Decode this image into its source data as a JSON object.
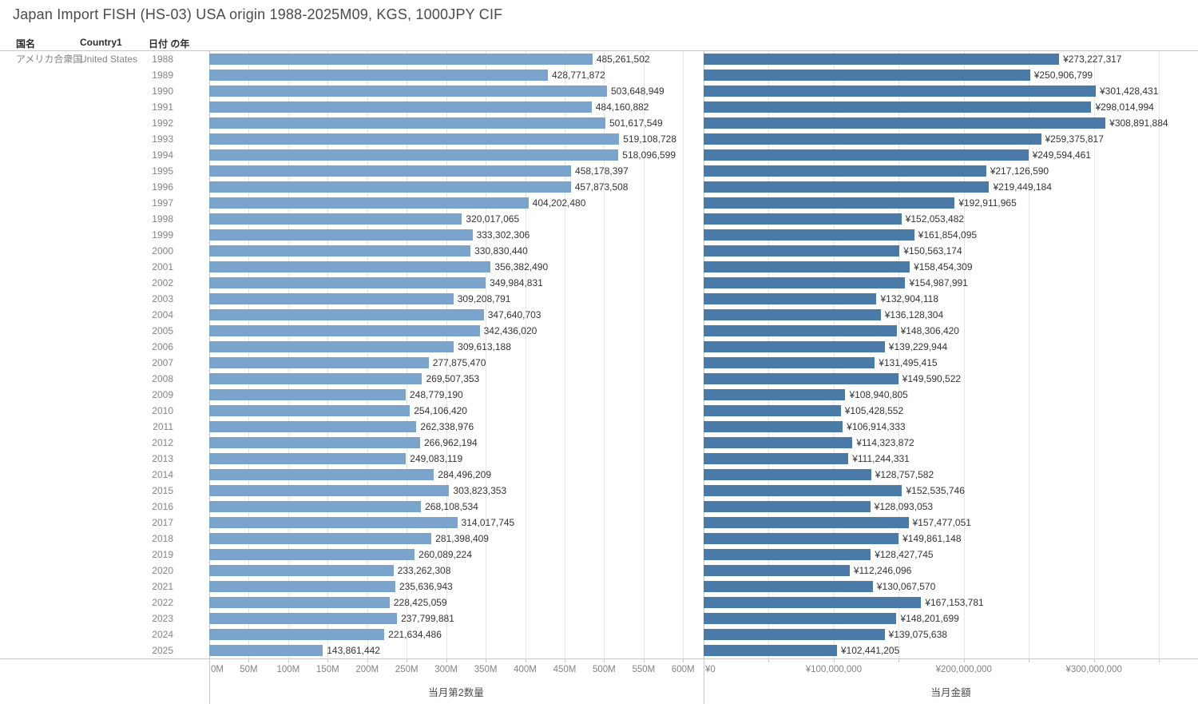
{
  "title": "Japan Import FISH (HS-03) USA origin 1988-2025M09, KGS, 1000JPY CIF",
  "table": {
    "headers": [
      "国名",
      "Country1",
      "日付 の年"
    ],
    "row": {
      "country_jp": "アメリカ合衆国",
      "country_en": "United States"
    }
  },
  "colors": {
    "quantity_bar": "#7AA4CB",
    "amount_bar": "#4A7AA8",
    "gridline": "#e6e6e6",
    "border": "#c9c9c9"
  },
  "chart_data": [
    {
      "type": "bar",
      "orientation": "horizontal",
      "xlabel": "当月第2数量",
      "value_prefix": "",
      "bar_color": "#7AA4CB",
      "xlim": [
        0,
        625000000
      ],
      "categories": [
        "1988",
        "1989",
        "1990",
        "1991",
        "1992",
        "1993",
        "1994",
        "1995",
        "1996",
        "1997",
        "1998",
        "1999",
        "2000",
        "2001",
        "2002",
        "2003",
        "2004",
        "2005",
        "2006",
        "2007",
        "2008",
        "2009",
        "2010",
        "2011",
        "2012",
        "2013",
        "2014",
        "2015",
        "2016",
        "2017",
        "2018",
        "2019",
        "2020",
        "2021",
        "2022",
        "2023",
        "2024",
        "2025"
      ],
      "values": [
        485261502,
        428771872,
        503648949,
        484160882,
        501617549,
        519108728,
        518096599,
        458178397,
        457873508,
        404202480,
        320017065,
        333302306,
        330830440,
        356382490,
        349984831,
        309208791,
        347640703,
        342436020,
        309613188,
        277875470,
        269507353,
        248779190,
        254106420,
        262338976,
        266962194,
        249083119,
        284496209,
        303823353,
        268108534,
        314017745,
        281398409,
        260089224,
        233262308,
        235636943,
        228425059,
        237799881,
        221634486,
        143861442
      ],
      "gridlines": [
        0,
        50000000,
        100000000,
        150000000,
        200000000,
        250000000,
        300000000,
        350000000,
        400000000,
        450000000,
        500000000,
        550000000,
        600000000
      ],
      "ticks": {
        "values": [
          0,
          50000000,
          100000000,
          150000000,
          200000000,
          250000000,
          300000000,
          350000000,
          400000000,
          450000000,
          500000000,
          550000000,
          600000000
        ],
        "labels": [
          "0M",
          "50M",
          "100M",
          "150M",
          "200M",
          "250M",
          "300M",
          "350M",
          "400M",
          "450M",
          "500M",
          "550M",
          "600M"
        ]
      }
    },
    {
      "type": "bar",
      "orientation": "horizontal",
      "xlabel": "当月金額",
      "value_prefix": "¥",
      "bar_color": "#4A7AA8",
      "xlim": [
        0,
        380000000
      ],
      "categories": [
        "1988",
        "1989",
        "1990",
        "1991",
        "1992",
        "1993",
        "1994",
        "1995",
        "1996",
        "1997",
        "1998",
        "1999",
        "2000",
        "2001",
        "2002",
        "2003",
        "2004",
        "2005",
        "2006",
        "2007",
        "2008",
        "2009",
        "2010",
        "2011",
        "2012",
        "2013",
        "2014",
        "2015",
        "2016",
        "2017",
        "2018",
        "2019",
        "2020",
        "2021",
        "2022",
        "2023",
        "2024",
        "2025"
      ],
      "values": [
        273227317,
        250906799,
        301428431,
        298014994,
        308891884,
        259375817,
        249594461,
        217126590,
        219449184,
        192911965,
        152053482,
        161854095,
        150563174,
        158454309,
        154987991,
        132904118,
        136128304,
        148306420,
        139229944,
        131495415,
        149590522,
        108940805,
        105428552,
        106914333,
        114323872,
        111244331,
        128757582,
        152535746,
        128093053,
        157477051,
        149861148,
        128427745,
        112246096,
        130067570,
        167153781,
        148201699,
        139075638,
        102441205
      ],
      "gridlines": [
        0,
        50000000,
        100000000,
        150000000,
        200000000,
        250000000,
        300000000,
        350000000
      ],
      "ticks": {
        "values": [
          0,
          100000000,
          200000000,
          300000000
        ],
        "labels": [
          "¥0",
          "¥100,000,000",
          "¥200,000,000",
          "¥300,000,000"
        ]
      }
    }
  ]
}
